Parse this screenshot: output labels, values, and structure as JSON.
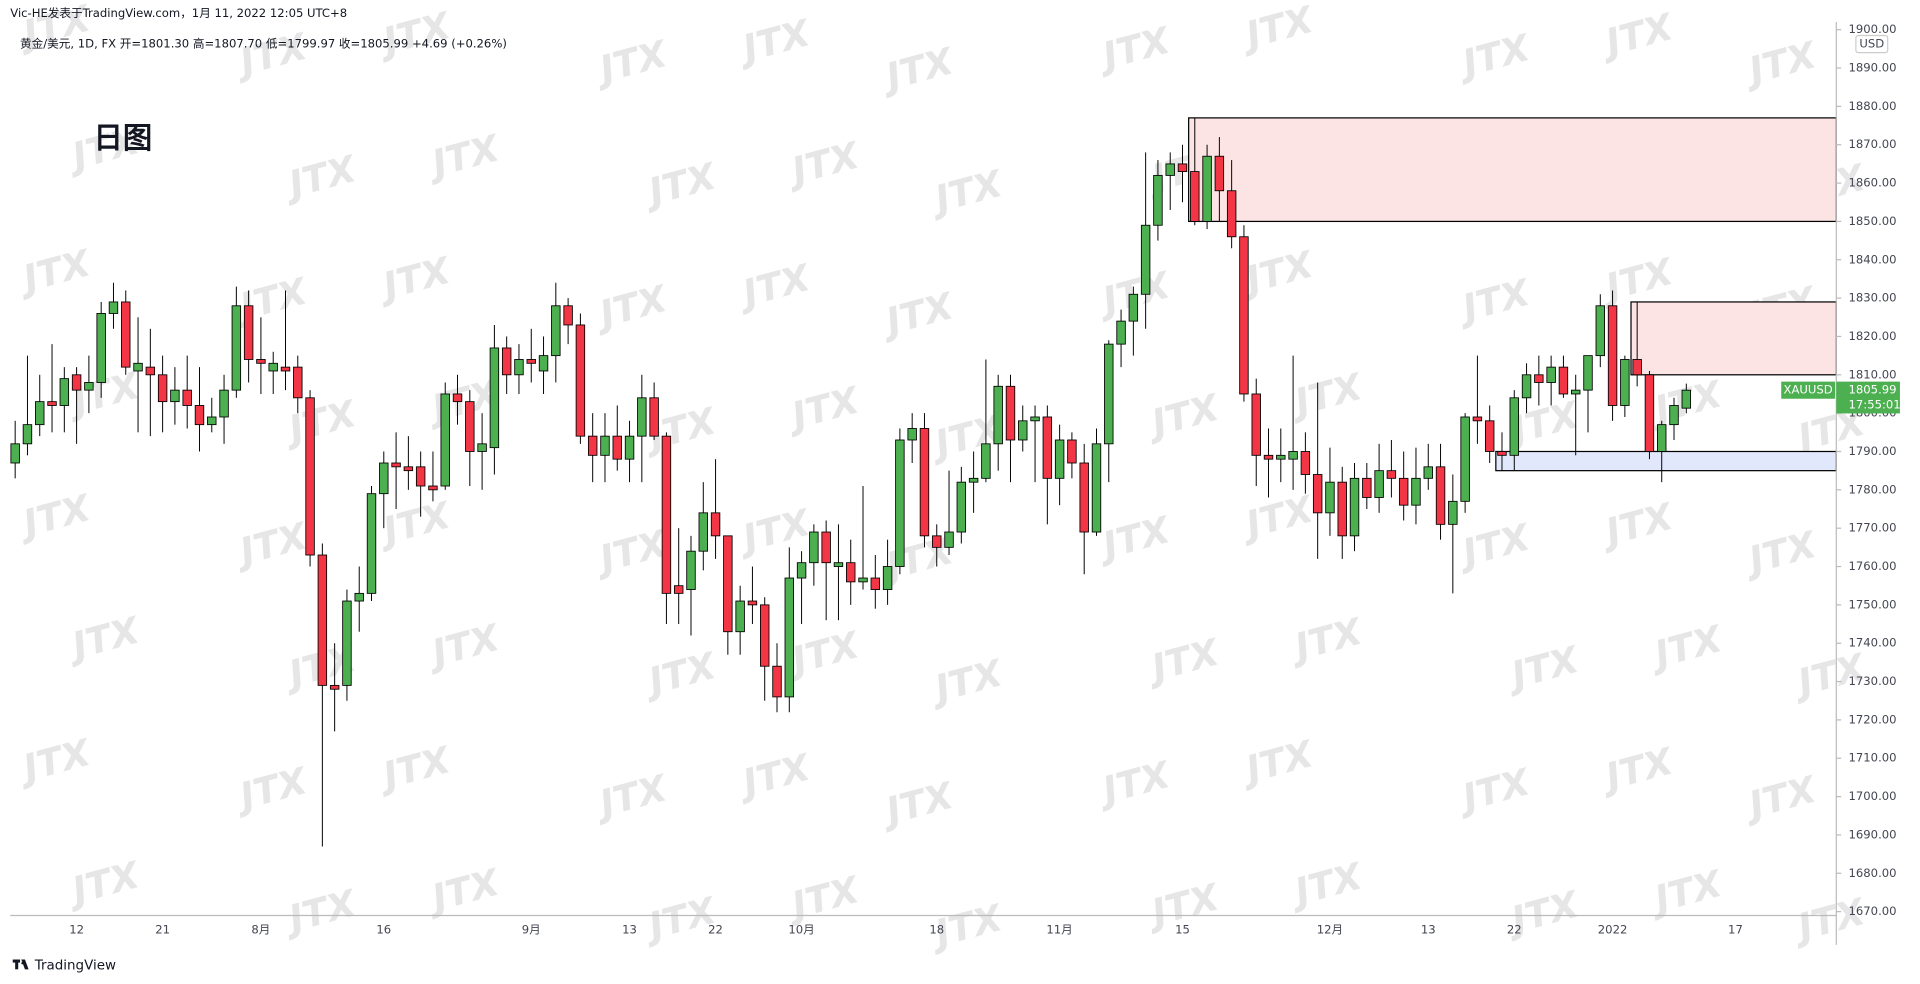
{
  "header": "Vic-HE发表于TradingView.com，1月 11, 2022 12:05 UTC+8",
  "footer": "TradingView",
  "watermark": "JTX",
  "chart_data": {
    "type": "candlestick",
    "title": "日图",
    "legend": "黄金/美元, 1D, FX  开=1801.30  高=1807.70  低=1799.97  收=1805.99  +4.69 (+0.26%)",
    "currency": "USD",
    "symbol": "XAUUSD",
    "countdown": "17:55:01",
    "up_color": "#4caf50",
    "down_color": "#f23645",
    "border_color": "#000000",
    "grid": false,
    "categories": [
      null,
      null,
      null,
      null,
      null,
      "12",
      null,
      null,
      null,
      null,
      null,
      null,
      "21",
      null,
      null,
      null,
      null,
      null,
      null,
      null,
      "8月",
      null,
      null,
      null,
      null,
      null,
      null,
      null,
      null,
      null,
      "16",
      null,
      null,
      null,
      null,
      null,
      null,
      null,
      null,
      null,
      null,
      null,
      "9月",
      null,
      null,
      null,
      null,
      null,
      null,
      null,
      "13",
      null,
      null,
      null,
      null,
      null,
      null,
      "22",
      null,
      null,
      null,
      null,
      null,
      null,
      "10月",
      null,
      null,
      null,
      null,
      null,
      null,
      null,
      null,
      null,
      null,
      "18",
      null,
      null,
      null,
      null,
      null,
      null,
      null,
      null,
      null,
      "11月",
      null,
      null,
      null,
      null,
      null,
      null,
      null,
      null,
      null,
      "15",
      null,
      null,
      null,
      null,
      null,
      null,
      null,
      null,
      null,
      null,
      null,
      "12月",
      null,
      null,
      null,
      null,
      null,
      null,
      null,
      "13",
      null,
      null,
      null,
      null,
      null,
      null,
      "22",
      null,
      null,
      null,
      null,
      null,
      null,
      null,
      "2022",
      null,
      null,
      null,
      null,
      null,
      null,
      null,
      null,
      null,
      "17"
    ],
    "open": [
      1787,
      1792,
      1797,
      1803,
      1802,
      1810,
      1806,
      1808,
      1826,
      1829,
      1811,
      1812,
      1810,
      1803,
      1806,
      1802,
      1797,
      1799,
      1806,
      1828,
      1814,
      1811,
      1812,
      1812,
      1804,
      1763,
      1729,
      1729,
      1751,
      1753,
      1779,
      1787,
      1786,
      1786,
      1781,
      1781,
      1805,
      1803,
      1790,
      1791,
      1817,
      1810,
      1814,
      1811,
      1815,
      1828,
      1823,
      1794,
      1789,
      1794,
      1788,
      1794,
      1804,
      1794,
      1755,
      1754,
      1764,
      1774,
      1768,
      1743,
      1751,
      1750,
      1734,
      1726,
      1757,
      1761,
      1769,
      1760,
      1761,
      1756,
      1757,
      1754,
      1760,
      1793,
      1796,
      1768,
      1765,
      1769,
      1782,
      1783,
      1792,
      1807,
      1793,
      1798,
      1799,
      1783,
      1793,
      1787,
      1769,
      1792,
      1818,
      1824,
      1831,
      1849,
      1862,
      1865,
      1863,
      1850,
      1867,
      1858,
      1846,
      1805,
      1789,
      1788,
      1788,
      1790,
      1784,
      1774,
      1782,
      1768,
      1783,
      1778,
      1785,
      1783,
      1776,
      1783,
      1786,
      1771,
      1777,
      1799,
      1798,
      1790,
      1789,
      1804,
      1810,
      1808,
      1812,
      1805,
      1806,
      1815,
      1828,
      1802,
      1814,
      1810,
      1790,
      1797,
      1801.3,
      null,
      null,
      null,
      null
    ],
    "high": [
      1798,
      1815,
      1810,
      1818,
      1812,
      1812,
      1815,
      1829,
      1834,
      1832,
      1825,
      1822,
      1815,
      1812,
      1815,
      1812,
      1804,
      1810,
      1833,
      1832,
      1825,
      1816,
      1832,
      1815,
      1806,
      1766,
      1740,
      1754,
      1760,
      1781,
      1790,
      1795,
      1794,
      1790,
      1790,
      1808,
      1810,
      1806,
      1800,
      1823,
      1820,
      1818,
      1822,
      1820,
      1834,
      1830,
      1826,
      1800,
      1800,
      1802,
      1798,
      1810,
      1808,
      1795,
      1770,
      1768,
      1782,
      1788,
      1768,
      1755,
      1760,
      1752,
      1740,
      1765,
      1764,
      1771,
      1772,
      1771,
      1767,
      1781,
      1763,
      1767,
      1796,
      1800,
      1800,
      1771,
      1785,
      1786,
      1790,
      1814,
      1810,
      1810,
      1802,
      1802,
      1802,
      1797,
      1795,
      1792,
      1796,
      1819,
      1827,
      1833,
      1868,
      1866,
      1868,
      1870,
      1877,
      1870,
      1872,
      1866,
      1849,
      1809,
      1796,
      1796,
      1815,
      1795,
      1808,
      1791,
      1786,
      1787,
      1787,
      1792,
      1793,
      1790,
      1791,
      1792,
      1792,
      1784,
      1800,
      1815,
      1802,
      1795,
      1806,
      1813,
      1815,
      1815,
      1815,
      1810,
      1815,
      1831,
      1832,
      1815,
      1829,
      1811,
      1798,
      1804,
      1807.7,
      null,
      null,
      null,
      null
    ],
    "low": [
      1783,
      1789,
      1794,
      1795,
      1795,
      1792,
      1800,
      1804,
      1822,
      1810,
      1795,
      1794,
      1795,
      1797,
      1796,
      1790,
      1795,
      1792,
      1804,
      1808,
      1805,
      1805,
      1806,
      1800,
      1760,
      1687,
      1717,
      1725,
      1743,
      1751,
      1770,
      1775,
      1780,
      1773,
      1777,
      1780,
      1797,
      1781,
      1780,
      1784,
      1805,
      1805,
      1808,
      1805,
      1808,
      1818,
      1792,
      1782,
      1782,
      1785,
      1782,
      1782,
      1793,
      1745,
      1745,
      1742,
      1759,
      1762,
      1737,
      1737,
      1745,
      1725,
      1722,
      1722,
      1745,
      1755,
      1746,
      1746,
      1750,
      1754,
      1749,
      1750,
      1758,
      1787,
      1765,
      1760,
      1763,
      1766,
      1774,
      1782,
      1785,
      1782,
      1790,
      1782,
      1771,
      1776,
      1783,
      1758,
      1768,
      1782,
      1812,
      1815,
      1822,
      1845,
      1853,
      1855,
      1849,
      1848,
      1850,
      1843,
      1803,
      1781,
      1778,
      1782,
      1780,
      1779,
      1762,
      1768,
      1762,
      1764,
      1775,
      1774,
      1778,
      1772,
      1771,
      1780,
      1767,
      1753,
      1774,
      1792,
      1787,
      1785,
      1785,
      1800,
      1802,
      1802,
      1804,
      1789,
      1795,
      1812,
      1798,
      1799,
      1807,
      1788,
      1782,
      1793,
      1799.97,
      null,
      null,
      null,
      null
    ],
    "close": [
      1792,
      1797,
      1803,
      1802,
      1809,
      1806,
      1808,
      1826,
      1829,
      1812,
      1813,
      1810,
      1803,
      1806,
      1802,
      1797,
      1799,
      1806,
      1828,
      1814,
      1813,
      1813,
      1811,
      1804,
      1763,
      1729,
      1728,
      1751,
      1753,
      1779,
      1787,
      1786,
      1785,
      1781,
      1780,
      1805,
      1803,
      1790,
      1792,
      1817,
      1810,
      1814,
      1813,
      1815,
      1828,
      1823,
      1794,
      1789,
      1794,
      1788,
      1794,
      1804,
      1794,
      1753,
      1753,
      1764,
      1774,
      1768,
      1743,
      1751,
      1750,
      1734,
      1726,
      1757,
      1761,
      1769,
      1761,
      1761,
      1756,
      1757,
      1754,
      1760,
      1793,
      1796,
      1768,
      1765,
      1769,
      1782,
      1783,
      1792,
      1807,
      1793,
      1798,
      1799,
      1783,
      1793,
      1787,
      1769,
      1792,
      1818,
      1824,
      1831,
      1849,
      1862,
      1865,
      1863,
      1850,
      1867,
      1858,
      1846,
      1805,
      1789,
      1788,
      1789,
      1790,
      1784,
      1774,
      1782,
      1768,
      1783,
      1778,
      1785,
      1783,
      1776,
      1783,
      1786,
      1771,
      1777,
      1799,
      1798,
      1790,
      1789,
      1804,
      1810,
      1808,
      1812,
      1805,
      1806,
      1815,
      1828,
      1802,
      1814,
      1810,
      1790,
      1797,
      1802,
      1805.99,
      null,
      null,
      null,
      null
    ],
    "zones": [
      {
        "low": 1850,
        "high": 1877,
        "start": 96,
        "color": "#fde4e4"
      },
      {
        "low": 1810,
        "high": 1829,
        "start": 132,
        "color": "#fde4e4"
      },
      {
        "low": 1785,
        "high": 1790,
        "start": 121,
        "color": "#e2e8fb"
      }
    ],
    "ylim": [
      1669,
      1902
    ],
    "yticks": [
      {
        "value": 1670,
        "label": "1670.00"
      },
      {
        "value": 1680,
        "label": "1680.00"
      },
      {
        "value": 1690,
        "label": "1690.00"
      },
      {
        "value": 1700,
        "label": "1700.00"
      },
      {
        "value": 1710,
        "label": "1710.00"
      },
      {
        "value": 1720,
        "label": "1720.00"
      },
      {
        "value": 1730,
        "label": "1730.00"
      },
      {
        "value": 1740,
        "label": "1740.00"
      },
      {
        "value": 1750,
        "label": "1750.00"
      },
      {
        "value": 1760,
        "label": "1760.00"
      },
      {
        "value": 1770,
        "label": "1770.00"
      },
      {
        "value": 1780,
        "label": "1780.00"
      },
      {
        "value": 1790,
        "label": "1790.00"
      },
      {
        "value": 1800,
        "label": "1800.00"
      },
      {
        "value": 1810,
        "label": "1810.00"
      },
      {
        "value": 1820,
        "label": "1820.00"
      },
      {
        "value": 1830,
        "label": "1830.00"
      },
      {
        "value": 1840,
        "label": "1840.00"
      },
      {
        "value": 1850,
        "label": "1850.00"
      },
      {
        "value": 1860,
        "label": "1860.00"
      },
      {
        "value": 1870,
        "label": "1870.00"
      },
      {
        "value": 1880,
        "label": "1880.00"
      },
      {
        "value": 1890,
        "label": "1890.00"
      },
      {
        "value": 1900,
        "label": "1900.00"
      }
    ]
  }
}
